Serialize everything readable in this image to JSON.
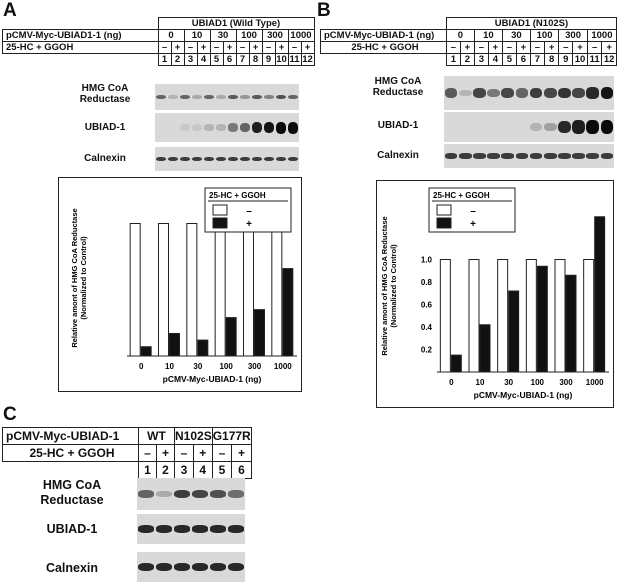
{
  "panels": {
    "A": {
      "letter": "A",
      "header": "UBIAD1 (Wild Type)",
      "plasmid_label": "pCMV-Myc-UBIAD1-1 (ng)",
      "treatment_label": "25-HC + GGOH",
      "doses": [
        "0",
        "10",
        "30",
        "100",
        "300",
        "1000"
      ],
      "treatment_signs": [
        "–",
        "+",
        "–",
        "+",
        "–",
        "+",
        "–",
        "+",
        "–",
        "+",
        "–",
        "+"
      ],
      "lanes": [
        "1",
        "2",
        "3",
        "4",
        "5",
        "6",
        "7",
        "8",
        "9",
        "10",
        "11",
        "12"
      ],
      "blot_labels": {
        "hmgcr": "HMG CoA\nReductase",
        "ubiad1": "UBIAD-1",
        "calnexin": "Calnexin"
      }
    },
    "B": {
      "letter": "B",
      "header": "UBIAD1 (N102S)",
      "plasmid_label": "pCMV-Myc-UBIAD-1 (ng)",
      "treatment_label": "25-HC + GGOH",
      "doses": [
        "0",
        "10",
        "30",
        "100",
        "300",
        "1000"
      ],
      "treatment_signs": [
        "–",
        "+",
        "–",
        "+",
        "–",
        "+",
        "–",
        "+",
        "–",
        "+",
        "–",
        "+"
      ],
      "lanes": [
        "1",
        "2",
        "3",
        "4",
        "5",
        "6",
        "7",
        "8",
        "9",
        "10",
        "11",
        "12"
      ],
      "blot_labels": {
        "hmgcr": "HMG CoA\nReductase",
        "ubiad1": "UBIAD-1",
        "calnexin": "Calnexin"
      }
    },
    "C": {
      "letter": "C",
      "plasmid_label": "pCMV-Myc-UBIAD-1",
      "treatment_label": "25-HC + GGOH",
      "groups": [
        "WT",
        "N102S",
        "G177R"
      ],
      "treatment_signs": [
        "–",
        "+",
        "–",
        "+",
        "–",
        "+"
      ],
      "lanes": [
        "1",
        "2",
        "3",
        "4",
        "5",
        "6"
      ],
      "blot_labels": {
        "hmgcr": "HMG CoA\nReductase",
        "ubiad1": "UBIAD-1",
        "calnexin": "Calnexin"
      }
    }
  },
  "chart_data": [
    {
      "type": "bar",
      "panel": "A",
      "ylabel": "Relative amont of HMG CoA Reductase\n(Normalized to Control)",
      "xlabel": "pCMV-Myc-UBIAD-1 (ng)",
      "categories": [
        "0",
        "10",
        "30",
        "100",
        "300",
        "1000"
      ],
      "ylim": [
        0,
        1.2
      ],
      "legend_title": "25-HC + GGOH",
      "series": [
        {
          "name": "–",
          "color": "#ffffff",
          "values": [
            1.0,
            1.0,
            1.0,
            1.0,
            1.0,
            1.0
          ]
        },
        {
          "name": "+",
          "color": "#111111",
          "values": [
            0.07,
            0.17,
            0.12,
            0.29,
            0.35,
            0.66
          ]
        }
      ],
      "axis_tick_labels": []
    },
    {
      "type": "bar",
      "panel": "B",
      "ylabel": "Relative amont of HMG CoA Reductase\n(Normalized to Control)",
      "xlabel": "pCMV-Myc-UBIAD-1 (ng)",
      "categories": [
        "0",
        "10",
        "30",
        "100",
        "300",
        "1000"
      ],
      "ylim": [
        0,
        1.6
      ],
      "legend_title": "25-HC + GGOH",
      "series": [
        {
          "name": "–",
          "color": "#ffffff",
          "values": [
            1.0,
            1.0,
            1.0,
            1.0,
            1.0,
            1.0
          ]
        },
        {
          "name": "+",
          "color": "#111111",
          "values": [
            0.15,
            0.42,
            0.72,
            0.94,
            0.86,
            1.38
          ]
        }
      ],
      "axis_tick_labels": [
        "1.0",
        "0.8",
        "0.6",
        "0.4",
        "0.2"
      ]
    }
  ],
  "blot_intensity": {
    "A": {
      "hmgcr": [
        0.55,
        0.15,
        0.55,
        0.2,
        0.55,
        0.2,
        0.6,
        0.3,
        0.6,
        0.4,
        0.65,
        0.55
      ],
      "ubiad1": [
        0.02,
        0.02,
        0.05,
        0.05,
        0.15,
        0.15,
        0.45,
        0.55,
        0.9,
        0.95,
        1.0,
        1.0
      ],
      "calnexin": [
        0.75,
        0.75,
        0.75,
        0.75,
        0.75,
        0.75,
        0.75,
        0.75,
        0.75,
        0.75,
        0.75,
        0.75
      ]
    },
    "B": {
      "hmgcr": [
        0.6,
        0.15,
        0.7,
        0.45,
        0.7,
        0.55,
        0.75,
        0.7,
        0.8,
        0.7,
        0.85,
        0.95
      ],
      "ubiad1": [
        0.0,
        0.0,
        0.0,
        0.0,
        0.0,
        0.02,
        0.15,
        0.25,
        0.85,
        0.9,
        1.0,
        1.0
      ],
      "calnexin": [
        0.75,
        0.75,
        0.75,
        0.75,
        0.75,
        0.75,
        0.75,
        0.75,
        0.75,
        0.75,
        0.75,
        0.75
      ]
    },
    "C": {
      "hmgcr": [
        0.55,
        0.2,
        0.75,
        0.7,
        0.65,
        0.5
      ],
      "ubiad1": [
        0.85,
        0.85,
        0.85,
        0.85,
        0.85,
        0.85
      ],
      "calnexin": [
        0.85,
        0.85,
        0.85,
        0.85,
        0.85,
        0.85
      ]
    }
  }
}
